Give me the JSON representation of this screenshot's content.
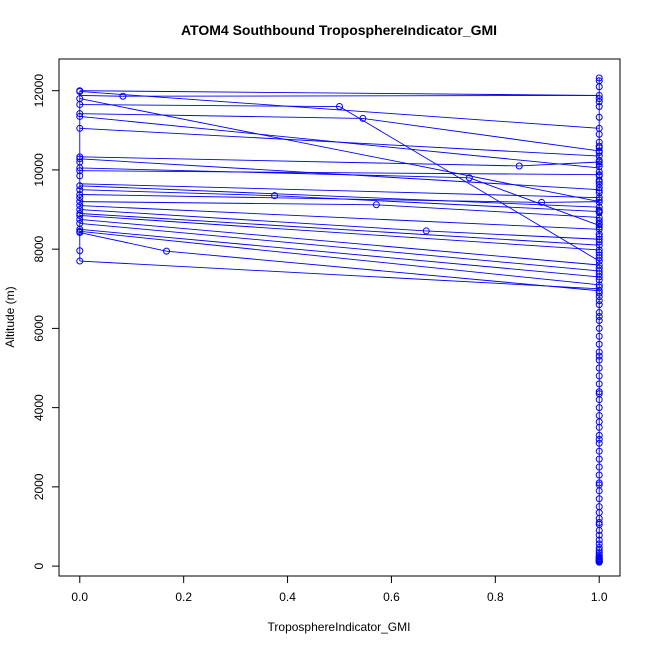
{
  "chart_data": {
    "type": "scatter",
    "title": "ATOM4 Southbound TroposphereIndicator_GMI",
    "xlabel": "TroposphereIndicator_GMI",
    "ylabel": "Altitude (m)",
    "xlim": [
      -0.04,
      1.04
    ],
    "ylim": [
      -250,
      12800
    ],
    "xticks": [
      0.0,
      0.2,
      0.4,
      0.6,
      0.8,
      1.0
    ],
    "xtick_labels": [
      "0.0",
      "0.2",
      "0.4",
      "0.6",
      "0.8",
      "1.0"
    ],
    "yticks": [
      0,
      2000,
      4000,
      6000,
      8000,
      10000,
      12000
    ],
    "ytick_labels": [
      "0",
      "2000",
      "4000",
      "6000",
      "8000",
      "10000",
      "12000"
    ],
    "color": "#0000ff",
    "grid": false,
    "legend": "none",
    "series": [
      {
        "x": [
          0,
          0,
          0,
          0,
          0,
          0,
          0,
          0,
          0,
          0,
          0,
          0,
          0,
          0,
          0,
          0,
          0,
          0,
          0,
          0,
          0,
          0,
          0,
          0,
          0,
          0,
          0,
          0,
          0,
          0.083,
          0.167,
          0.375,
          0.5,
          0.545,
          0.571,
          0.667,
          0.75,
          0.846,
          0.889,
          1,
          1,
          1,
          1,
          1,
          1,
          1,
          1,
          1,
          1,
          1,
          1,
          1,
          1,
          1,
          1,
          1,
          1,
          1,
          1,
          1,
          1,
          1,
          1,
          1,
          1,
          1,
          1,
          1,
          1,
          1,
          1,
          1,
          1,
          1,
          1,
          1,
          1,
          1,
          1,
          1,
          1,
          1,
          1,
          1,
          1,
          1,
          1,
          1,
          1,
          1,
          1,
          1,
          1,
          1,
          1,
          1,
          1,
          1,
          1,
          1,
          1,
          1,
          1,
          1,
          1,
          1,
          1,
          1,
          1,
          1,
          1,
          1,
          1,
          1,
          1,
          1,
          1,
          1,
          1,
          1,
          1,
          1,
          1,
          1,
          1,
          1,
          1,
          1,
          1,
          1,
          1,
          1,
          1,
          1,
          1,
          1,
          1,
          1,
          1,
          1,
          1,
          1,
          1,
          1,
          1,
          1,
          1,
          1,
          1,
          1,
          1,
          1,
          1,
          1,
          1,
          1,
          1,
          1,
          1
        ],
        "y": [
          12000,
          11980,
          11800,
          11650,
          11420,
          11350,
          11050,
          10330,
          10280,
          10050,
          9980,
          9850,
          9600,
          9500,
          9380,
          9300,
          9200,
          9100,
          9000,
          8900,
          8850,
          8750,
          8650,
          8500,
          8450,
          8420,
          7960,
          7700,
          10200,
          11860,
          7950,
          9350,
          11600,
          11300,
          9120,
          8460,
          9800,
          10100,
          9180,
          12320,
          12250,
          12100,
          11880,
          11800,
          11720,
          11600,
          11330,
          11050,
          10900,
          10700,
          10560,
          10480,
          10350,
          10200,
          10080,
          9950,
          9850,
          9700,
          9550,
          9420,
          9300,
          9180,
          9060,
          8950,
          8800,
          8650,
          8500,
          8380,
          8250,
          8100,
          7980,
          7850,
          7700,
          7600,
          7450,
          7300,
          7100,
          6950,
          6800,
          6600,
          6400,
          6200,
          6000,
          5800,
          5600,
          5400,
          5200,
          5000,
          4800,
          4600,
          4400,
          4200,
          4000,
          3800,
          3640,
          3500,
          3300,
          3100,
          2900,
          2700,
          2500,
          2300,
          2100,
          1900,
          1700,
          1500,
          1350,
          1200,
          1050,
          900,
          780,
          660,
          560,
          470,
          400,
          340,
          290,
          240,
          200,
          170,
          140,
          120,
          100,
          100,
          110,
          130,
          160,
          190,
          230,
          10600,
          10440,
          10240,
          9740,
          9640,
          9240,
          8920,
          8720,
          8560,
          8320,
          7920,
          7520,
          7220,
          6890,
          6300,
          5300,
          4350,
          3200,
          2050,
          1100,
          10150,
          9880,
          9480,
          8980,
          8620,
          8180,
          7780,
          7380,
          7040,
          6700
        ]
      }
    ],
    "lines": [
      {
        "x": [
          0,
          1
        ],
        "y": [
          12000,
          11880
        ]
      },
      {
        "x": [
          0,
          1
        ],
        "y": [
          11980,
          11050
        ]
      },
      {
        "x": [
          0,
          1
        ],
        "y": [
          11800,
          9200
        ]
      },
      {
        "x": [
          0,
          0.5
        ],
        "y": [
          11650,
          11600
        ]
      },
      {
        "x": [
          0.5,
          1
        ],
        "y": [
          11600,
          7700
        ]
      },
      {
        "x": [
          0,
          0.545
        ],
        "y": [
          11420,
          11300
        ]
      },
      {
        "x": [
          0.545,
          1
        ],
        "y": [
          11300,
          10480
        ]
      },
      {
        "x": [
          0,
          1
        ],
        "y": [
          11350,
          10050
        ]
      },
      {
        "x": [
          0,
          1
        ],
        "y": [
          11050,
          10350
        ]
      },
      {
        "x": [
          0,
          0.846
        ],
        "y": [
          10330,
          10100
        ]
      },
      {
        "x": [
          0.846,
          1
        ],
        "y": [
          10100,
          10200
        ]
      },
      {
        "x": [
          0,
          1
        ],
        "y": [
          10280,
          9500
        ]
      },
      {
        "x": [
          0,
          0.75
        ],
        "y": [
          10050,
          9800
        ]
      },
      {
        "x": [
          0.75,
          1
        ],
        "y": [
          9800,
          8600
        ]
      },
      {
        "x": [
          0,
          1
        ],
        "y": [
          9980,
          9880
        ]
      },
      {
        "x": [
          0,
          1
        ],
        "y": [
          9600,
          9060
        ]
      },
      {
        "x": [
          0,
          0.375
        ],
        "y": [
          9500,
          9350
        ]
      },
      {
        "x": [
          0.375,
          1
        ],
        "y": [
          9350,
          8950
        ]
      },
      {
        "x": [
          0,
          0.889
        ],
        "y": [
          9380,
          9180
        ]
      },
      {
        "x": [
          0.889,
          1
        ],
        "y": [
          9180,
          9200
        ]
      },
      {
        "x": [
          0,
          0.571
        ],
        "y": [
          9200,
          9120
        ]
      },
      {
        "x": [
          0.571,
          1
        ],
        "y": [
          9120,
          8800
        ]
      },
      {
        "x": [
          0,
          1
        ],
        "y": [
          9100,
          8500
        ]
      },
      {
        "x": [
          0,
          0.667
        ],
        "y": [
          9000,
          8460
        ]
      },
      {
        "x": [
          0.667,
          1
        ],
        "y": [
          8460,
          8250
        ]
      },
      {
        "x": [
          0,
          1
        ],
        "y": [
          8900,
          8100
        ]
      },
      {
        "x": [
          0,
          1
        ],
        "y": [
          8850,
          7980
        ]
      },
      {
        "x": [
          0,
          1
        ],
        "y": [
          8750,
          7600
        ]
      },
      {
        "x": [
          0,
          1
        ],
        "y": [
          8650,
          7450
        ]
      },
      {
        "x": [
          0,
          1
        ],
        "y": [
          8500,
          7300
        ]
      },
      {
        "x": [
          0,
          1
        ],
        "y": [
          8450,
          7100
        ]
      },
      {
        "x": [
          0,
          0.167
        ],
        "y": [
          8420,
          7950
        ]
      },
      {
        "x": [
          0.167,
          1
        ],
        "y": [
          7950,
          6950
        ]
      },
      {
        "x": [
          0,
          1
        ],
        "y": [
          7700,
          7000
        ]
      },
      {
        "x": [
          0,
          1
        ],
        "y": [
          9650,
          9300
        ]
      },
      {
        "x": [
          0,
          0.083
        ],
        "y": [
          11880,
          11860
        ]
      },
      {
        "x": [
          0.083,
          1
        ],
        "y": [
          11860,
          11880
        ]
      },
      {
        "x": [
          1,
          1
        ],
        "y": [
          12320,
          100
        ]
      },
      {
        "x": [
          0,
          0
        ],
        "y": [
          12000,
          7700
        ]
      }
    ]
  }
}
